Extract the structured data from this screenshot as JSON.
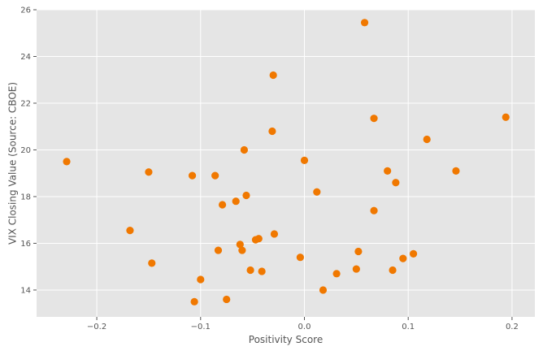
{
  "chart_data": {
    "type": "scatter",
    "title": "",
    "xlabel": "Positivity Score",
    "ylabel": "VIX Closing Value (Source: CBOE)",
    "xlim": [
      -0.258,
      0.222
    ],
    "ylim": [
      12.85,
      26.0
    ],
    "xticks": [
      -0.2,
      -0.1,
      0.0,
      0.1,
      0.2
    ],
    "xtick_labels": [
      "−0.2",
      "−0.1",
      "0.0",
      "0.1",
      "0.2"
    ],
    "yticks": [
      14,
      16,
      18,
      20,
      22,
      24,
      26
    ],
    "ytick_labels": [
      "14",
      "16",
      "18",
      "20",
      "22",
      "24",
      "26"
    ],
    "grid": true,
    "legend": "none",
    "colors": {
      "background": "#E5E5E5",
      "grid": "#FFFFFF",
      "marker": "#F07800"
    },
    "points": [
      {
        "x": -0.229,
        "y": 19.5
      },
      {
        "x": -0.168,
        "y": 16.55
      },
      {
        "x": -0.15,
        "y": 19.05
      },
      {
        "x": -0.147,
        "y": 15.15
      },
      {
        "x": -0.108,
        "y": 18.9
      },
      {
        "x": -0.106,
        "y": 13.5
      },
      {
        "x": -0.1,
        "y": 14.45
      },
      {
        "x": -0.086,
        "y": 18.9
      },
      {
        "x": -0.083,
        "y": 15.7
      },
      {
        "x": -0.079,
        "y": 17.65
      },
      {
        "x": -0.075,
        "y": 13.6
      },
      {
        "x": -0.066,
        "y": 17.8
      },
      {
        "x": -0.062,
        "y": 15.95
      },
      {
        "x": -0.06,
        "y": 15.7
      },
      {
        "x": -0.058,
        "y": 20.0
      },
      {
        "x": -0.056,
        "y": 18.05
      },
      {
        "x": -0.052,
        "y": 14.85
      },
      {
        "x": -0.047,
        "y": 16.15
      },
      {
        "x": -0.044,
        "y": 16.2
      },
      {
        "x": -0.041,
        "y": 14.8
      },
      {
        "x": -0.031,
        "y": 20.8
      },
      {
        "x": -0.03,
        "y": 23.2
      },
      {
        "x": -0.029,
        "y": 16.4
      },
      {
        "x": -0.004,
        "y": 15.4
      },
      {
        "x": 0.0,
        "y": 19.55
      },
      {
        "x": 0.012,
        "y": 18.2
      },
      {
        "x": 0.018,
        "y": 14.0
      },
      {
        "x": 0.031,
        "y": 14.7
      },
      {
        "x": 0.05,
        "y": 14.9
      },
      {
        "x": 0.052,
        "y": 15.65
      },
      {
        "x": 0.058,
        "y": 25.45
      },
      {
        "x": 0.067,
        "y": 21.35
      },
      {
        "x": 0.067,
        "y": 17.4
      },
      {
        "x": 0.08,
        "y": 19.1
      },
      {
        "x": 0.085,
        "y": 14.85
      },
      {
        "x": 0.088,
        "y": 18.6
      },
      {
        "x": 0.095,
        "y": 15.35
      },
      {
        "x": 0.105,
        "y": 15.55
      },
      {
        "x": 0.118,
        "y": 20.45
      },
      {
        "x": 0.146,
        "y": 19.1
      },
      {
        "x": 0.194,
        "y": 21.4
      }
    ]
  }
}
